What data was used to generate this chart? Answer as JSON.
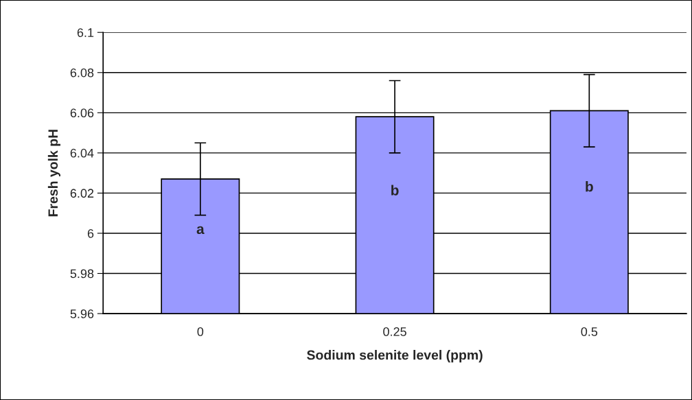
{
  "chart_data": {
    "type": "bar",
    "xlabel": "Sodium selenite level (ppm)",
    "ylabel": "Fresh yolk pH",
    "categories": [
      "0",
      "0.25",
      "0.5"
    ],
    "values": [
      6.027,
      6.058,
      6.061
    ],
    "errors": [
      0.018,
      0.018,
      0.018
    ],
    "color": "#9999ff",
    "ylim": [
      5.96,
      6.1
    ],
    "yticks": [
      5.96,
      5.98,
      6,
      6.02,
      6.04,
      6.06,
      6.08,
      6.1
    ],
    "grid": "y",
    "legend": false,
    "annotations": [
      "a",
      "b",
      "b"
    ]
  }
}
